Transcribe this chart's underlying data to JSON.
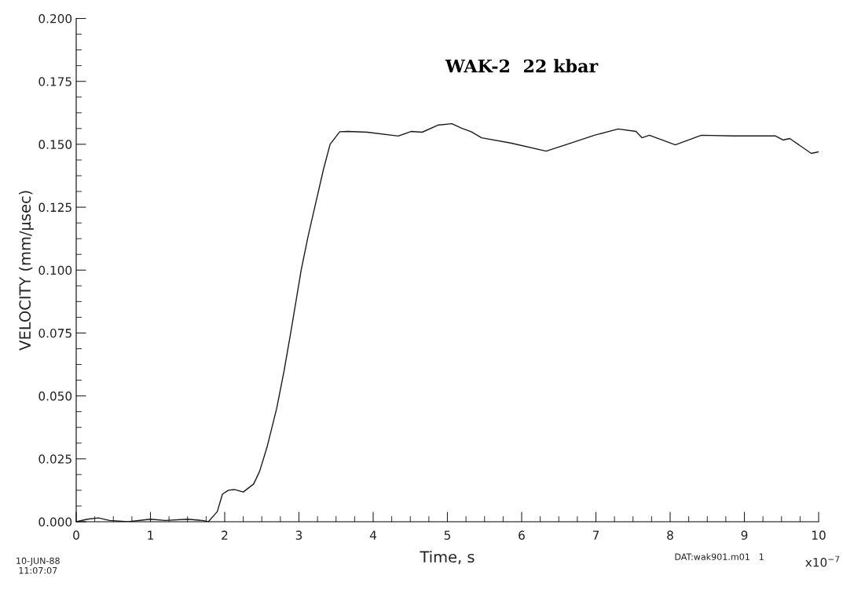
{
  "chart_data": {
    "type": "line",
    "title": "WAK-2  22 kbar",
    "xlabel": "Time, s",
    "ylabel": "VELOCITY (mm/µsec)",
    "annotations": [
      "10-JUN-88\n11:07:07",
      "DAT:wak901.m01",
      "1",
      "x10$^{−7}$"
    ],
    "x": [
      0,
      0.15,
      0.3,
      0.45,
      0.7,
      1.0,
      1.2,
      1.5,
      1.7,
      1.78,
      1.9,
      1.97,
      2.05,
      2.13,
      2.25,
      2.39,
      2.47,
      2.57,
      2.7,
      2.8,
      2.9,
      3.03,
      3.12,
      3.19,
      3.33,
      3.42,
      3.55,
      3.66,
      3.92,
      4.34,
      4.51,
      4.66,
      4.87,
      5.06,
      5.19,
      5.32,
      5.46,
      5.85,
      6.33,
      6.59,
      6.98,
      7.3,
      7.54,
      7.62,
      7.72,
      8.07,
      8.42,
      8.85,
      9.42,
      9.52,
      9.61,
      9.9,
      10.0
    ],
    "series": [
      {
        "color": "#1a1a1a",
        "values": [
          0,
          0.001,
          0.0015,
          0.0005,
          0,
          0.001,
          0.0005,
          0.001,
          0.0005,
          0,
          0.004,
          0.011,
          0.0125,
          0.0128,
          0.0118,
          0.015,
          0.02,
          0.0296,
          0.045,
          0.06,
          0.077,
          0.1,
          0.113,
          0.122,
          0.14,
          0.15,
          0.155,
          0.1551,
          0.1548,
          0.1533,
          0.1551,
          0.1548,
          0.1576,
          0.1582,
          0.1564,
          0.155,
          0.1526,
          0.1505,
          0.1473,
          0.1498,
          0.1536,
          0.1561,
          0.1551,
          0.1526,
          0.1536,
          0.1498,
          0.1536,
          0.1533,
          0.1533,
          0.1517,
          0.1523,
          0.1464,
          0.147
        ]
      }
    ],
    "xlim": [
      0,
      10
    ],
    "xticks": [
      0,
      1,
      2,
      3,
      4,
      5,
      6,
      7,
      8,
      9,
      10
    ],
    "ylim": [
      0,
      0.2
    ],
    "yticks": [
      {
        "value": 0,
        "label": "0.000"
      },
      {
        "value": 0.025,
        "label": "0.025"
      },
      {
        "value": 0.05,
        "label": "0.050"
      },
      {
        "value": 0.075,
        "label": "0.075"
      },
      {
        "value": 0.1,
        "label": "0.100"
      },
      {
        "value": 0.125,
        "label": "0.125"
      },
      {
        "value": 0.15,
        "label": "0.150"
      },
      {
        "value": 0.175,
        "label": "0.175"
      },
      {
        "value": 0.2,
        "label": "0.200"
      }
    ],
    "grid": false,
    "marker": "none",
    "line_style": "solid"
  }
}
